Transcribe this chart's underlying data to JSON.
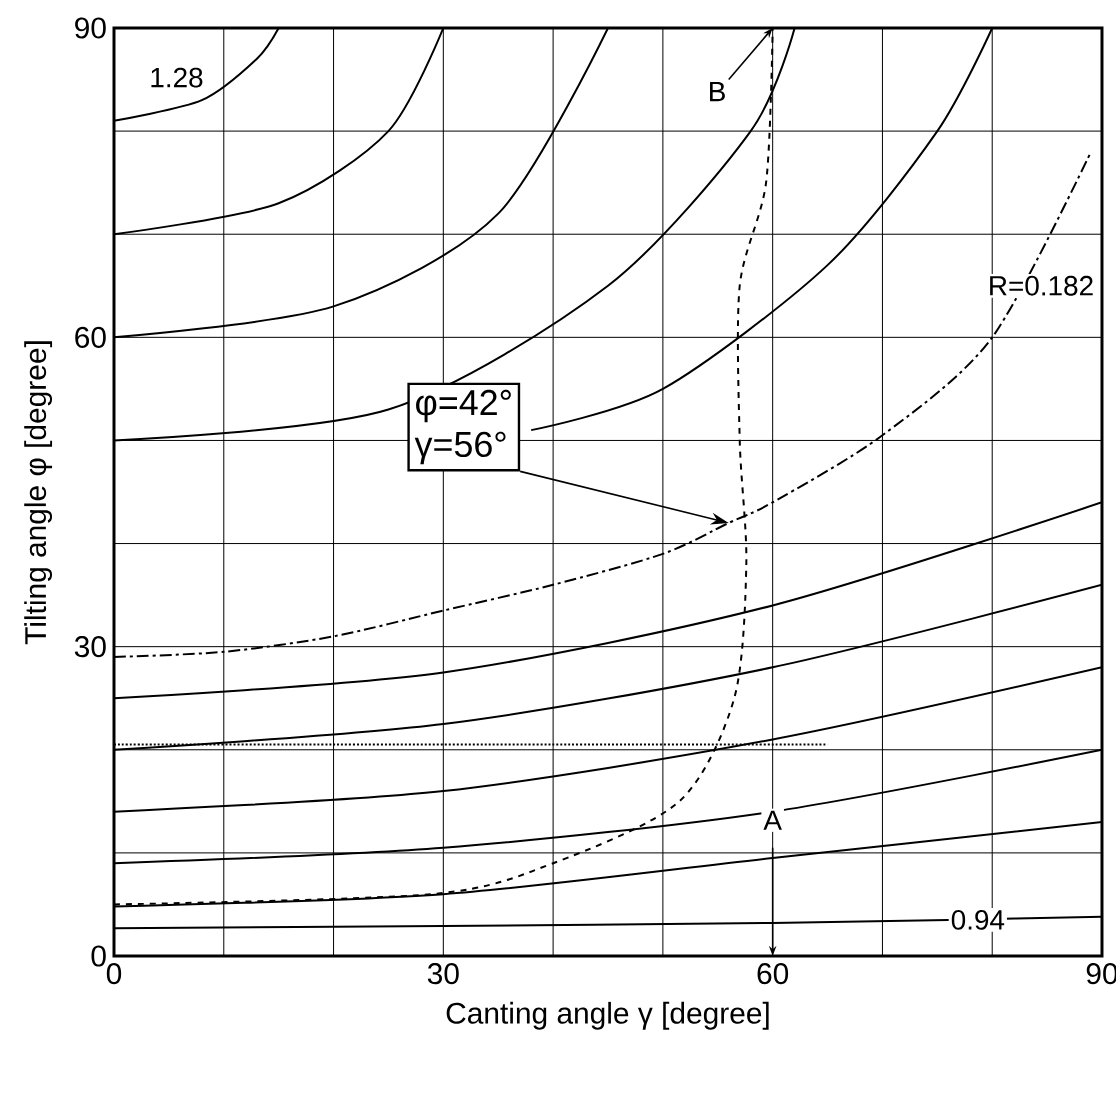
{
  "chart_data": {
    "type": "line",
    "xlabel": "Canting angle γ [degree]",
    "ylabel": "Tilting angle φ [degree]",
    "xlim": [
      0,
      90
    ],
    "ylim": [
      0,
      90
    ],
    "xticks": [
      0,
      {
        "value": 10,
        "label": null
      },
      {
        "value": 20,
        "label": null
      },
      30,
      {
        "value": 40,
        "label": null
      },
      {
        "value": 50,
        "label": null
      },
      60,
      {
        "value": 70,
        "label": null
      },
      {
        "value": 80,
        "label": null
      },
      90
    ],
    "yticks": [
      0,
      {
        "value": 10,
        "label": null
      },
      {
        "value": 20,
        "label": null
      },
      30,
      {
        "value": 40,
        "label": null
      },
      {
        "value": 50,
        "label": null
      },
      60,
      {
        "value": 70,
        "label": null
      },
      {
        "value": 80,
        "label": null
      },
      90
    ],
    "grid": true,
    "series": [
      {
        "color": "#000000",
        "line_style": "solid",
        "x": [
          0,
          30,
          60,
          76,
          90
        ],
        "values": [
          2.7,
          2.9,
          3.2,
          3.5,
          3.8
        ]
      },
      {
        "color": "#000000",
        "line_style": "solid",
        "x": [
          0,
          30,
          60,
          90
        ],
        "values": [
          4.8,
          6,
          9.5,
          13
        ]
      },
      {
        "color": "#000000",
        "line_style": "solid",
        "x": [
          0,
          30,
          60,
          90
        ],
        "values": [
          9,
          10.5,
          14,
          20
        ]
      },
      {
        "color": "#000000",
        "line_style": "solid",
        "x": [
          0,
          30,
          60,
          90
        ],
        "values": [
          14,
          16,
          21,
          28
        ]
      },
      {
        "color": "#000000",
        "line_style": "solid",
        "x": [
          0,
          30,
          60,
          90
        ],
        "values": [
          20,
          22.5,
          28,
          36
        ]
      },
      {
        "color": "#000000",
        "line_style": "solid",
        "x": [
          0,
          30,
          60,
          90
        ],
        "values": [
          25,
          27.5,
          34,
          44
        ]
      },
      {
        "color": "#000000",
        "line_style": "solid",
        "x": [
          0,
          8,
          13,
          15
        ],
        "values": [
          81,
          83,
          87,
          90
        ]
      },
      {
        "color": "#000000",
        "line_style": "solid",
        "x": [
          0,
          15,
          25,
          30
        ],
        "values": [
          70,
          73,
          80,
          90
        ]
      },
      {
        "color": "#000000",
        "line_style": "solid",
        "x": [
          0,
          20,
          35,
          45
        ],
        "values": [
          60,
          63,
          72,
          90
        ]
      },
      {
        "color": "#000000",
        "line_style": "solid",
        "x": [
          0,
          25,
          45,
          58,
          62
        ],
        "values": [
          50,
          53,
          65,
          80,
          90
        ]
      },
      {
        "color": "#000000",
        "line_style": "solid",
        "x": [
          38,
          50,
          65,
          75,
          80
        ],
        "values": [
          51,
          55,
          67,
          80,
          90
        ]
      },
      {
        "color": "#000000",
        "line_style": "dotted",
        "x": [
          0,
          20,
          40,
          65
        ],
        "values": [
          20.5,
          20.5,
          20.5,
          20.5
        ]
      },
      {
        "color": "#000000",
        "line_style": "dashdot",
        "x": [
          0,
          10,
          20,
          30,
          40,
          50,
          56,
          60,
          70,
          80,
          89
        ],
        "values": [
          29,
          29.5,
          31,
          33.5,
          36,
          39,
          42,
          44,
          50.5,
          60,
          78
        ]
      },
      {
        "color": "#000000",
        "line_style": "dashed",
        "x": [
          0,
          29,
          40,
          51.5,
          56.5,
          57.6,
          57,
          57,
          59.4,
          60
        ],
        "values": [
          5,
          6,
          9,
          15,
          25,
          38,
          50,
          65,
          75,
          90
        ]
      }
    ],
    "annotations": [
      "1.28",
      "R=0.182",
      {
        "text": "0.94",
        "x": 76,
        "y": 3.5
      },
      "A",
      {
        "text": "B",
        "x": 60,
        "y": 90
      },
      "φ=42°",
      {
        "text": "γ=56°",
        "x": 56,
        "y": 42
      }
    ]
  }
}
